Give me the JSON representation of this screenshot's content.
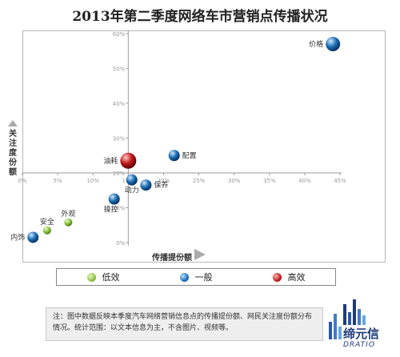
{
  "title": "2013年第二季度网络车市营销点传播状况",
  "chart_data": {
    "type": "scatter",
    "xlabel": "传播提份额",
    "ylabel": "关注度份额",
    "x_ticks": [
      "0%",
      "5%",
      "10%",
      "15%",
      "20%",
      "25%",
      "30%",
      "35%",
      "40%",
      "45%"
    ],
    "y_ticks": [
      "0%",
      "10%",
      "20%",
      "30%",
      "40%",
      "50%",
      "60%"
    ],
    "xlim": [
      0,
      45
    ],
    "ylim": [
      0,
      60
    ],
    "legend_position": "bottom",
    "series": [
      {
        "name": "低效",
        "color": "#8cc63f",
        "points": [
          {
            "label": "安全",
            "x": 3.5,
            "y": 3.5
          },
          {
            "label": "外观",
            "x": 6.5,
            "y": 5.8
          }
        ]
      },
      {
        "name": "一般",
        "color": "#1c6fb5",
        "points": [
          {
            "label": "价格",
            "x": 44,
            "y": 57
          },
          {
            "label": "配置",
            "x": 21.5,
            "y": 25
          },
          {
            "label": "保养",
            "x": 17.5,
            "y": 16.5
          },
          {
            "label": "动力",
            "x": 15.5,
            "y": 18
          },
          {
            "label": "操控",
            "x": 13,
            "y": 12.5
          },
          {
            "label": "内饰",
            "x": 1.5,
            "y": 1.5
          }
        ]
      },
      {
        "name": "高效",
        "color": "#c0171b",
        "points": [
          {
            "label": "油耗",
            "x": 15,
            "y": 23.5
          }
        ]
      }
    ]
  },
  "note": "注：图中数据反映本季度汽车网络营销信息点的传播提份额、网民关注度份额分布情况。统计范围：以文本信息为主，不含图片、视频等。",
  "logo": {
    "name": "缔元信",
    "en": "DRATIO"
  }
}
